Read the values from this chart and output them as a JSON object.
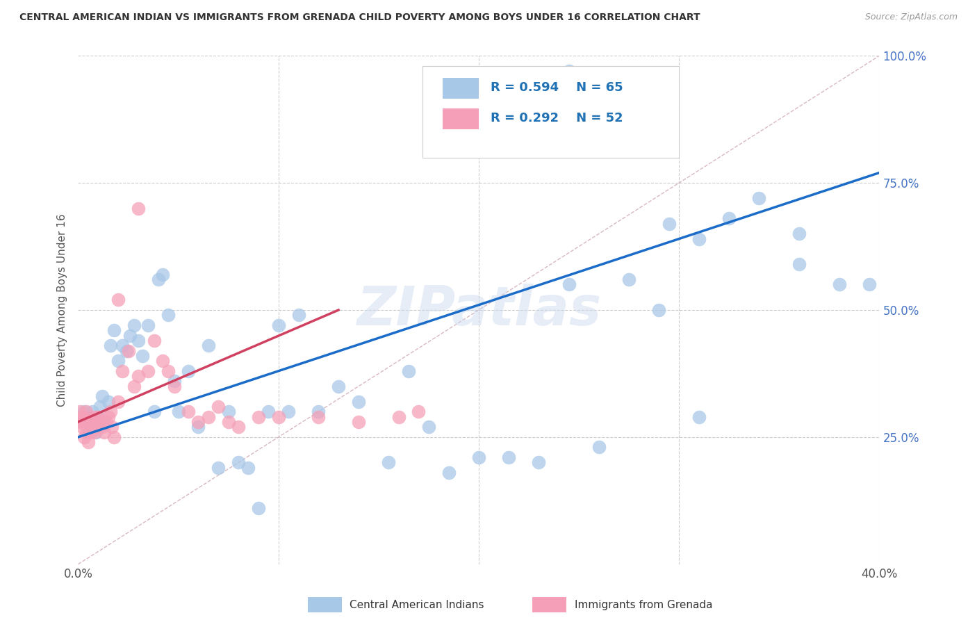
{
  "title": "CENTRAL AMERICAN INDIAN VS IMMIGRANTS FROM GRENADA CHILD POVERTY AMONG BOYS UNDER 16 CORRELATION CHART",
  "source": "Source: ZipAtlas.com",
  "ylabel": "Child Poverty Among Boys Under 16",
  "legend_label1": "Central American Indians",
  "legend_label2": "Immigrants from Grenada",
  "R1": 0.594,
  "N1": 65,
  "R2": 0.292,
  "N2": 52,
  "color1": "#a8c8e8",
  "color2": "#f5a0b8",
  "line_color1": "#1a6cc8",
  "line_color2": "#d04060",
  "ref_line_color": "#d8b8c0",
  "background_color": "#ffffff",
  "watermark": "ZIPatlas",
  "xlim": [
    0.0,
    0.4
  ],
  "ylim": [
    0.0,
    1.0
  ],
  "blue_line_x0": 0.0,
  "blue_line_y0": 0.25,
  "blue_line_x1": 0.4,
  "blue_line_y1": 0.77,
  "pink_line_x0": 0.0,
  "pink_line_y0": 0.28,
  "pink_line_x1": 0.13,
  "pink_line_y1": 0.5,
  "blue_x": [
    0.002,
    0.003,
    0.004,
    0.005,
    0.006,
    0.007,
    0.008,
    0.009,
    0.01,
    0.011,
    0.012,
    0.013,
    0.015,
    0.016,
    0.018,
    0.02,
    0.022,
    0.024,
    0.026,
    0.028,
    0.03,
    0.032,
    0.035,
    0.038,
    0.04,
    0.042,
    0.045,
    0.048,
    0.05,
    0.055,
    0.06,
    0.065,
    0.07,
    0.075,
    0.08,
    0.085,
    0.09,
    0.095,
    0.1,
    0.105,
    0.11,
    0.12,
    0.13,
    0.14,
    0.155,
    0.165,
    0.175,
    0.185,
    0.2,
    0.215,
    0.23,
    0.245,
    0.26,
    0.275,
    0.29,
    0.31,
    0.325,
    0.34,
    0.36,
    0.38,
    0.245,
    0.295,
    0.31,
    0.36,
    0.395
  ],
  "blue_y": [
    0.28,
    0.3,
    0.28,
    0.29,
    0.27,
    0.3,
    0.28,
    0.26,
    0.29,
    0.31,
    0.33,
    0.28,
    0.32,
    0.43,
    0.46,
    0.4,
    0.43,
    0.42,
    0.45,
    0.47,
    0.44,
    0.41,
    0.47,
    0.3,
    0.56,
    0.57,
    0.49,
    0.36,
    0.3,
    0.38,
    0.27,
    0.43,
    0.19,
    0.3,
    0.2,
    0.19,
    0.11,
    0.3,
    0.47,
    0.3,
    0.49,
    0.3,
    0.35,
    0.32,
    0.2,
    0.38,
    0.27,
    0.18,
    0.21,
    0.21,
    0.2,
    0.55,
    0.23,
    0.56,
    0.5,
    0.29,
    0.68,
    0.72,
    0.65,
    0.55,
    0.97,
    0.67,
    0.64,
    0.59,
    0.55
  ],
  "pink_x": [
    0.001,
    0.001,
    0.002,
    0.002,
    0.003,
    0.003,
    0.004,
    0.004,
    0.005,
    0.005,
    0.006,
    0.006,
    0.007,
    0.007,
    0.008,
    0.008,
    0.009,
    0.009,
    0.01,
    0.01,
    0.011,
    0.012,
    0.013,
    0.014,
    0.015,
    0.016,
    0.017,
    0.018,
    0.02,
    0.022,
    0.025,
    0.028,
    0.03,
    0.035,
    0.038,
    0.042,
    0.045,
    0.048,
    0.055,
    0.06,
    0.065,
    0.07,
    0.075,
    0.08,
    0.09,
    0.1,
    0.12,
    0.14,
    0.16,
    0.17,
    0.02,
    0.03
  ],
  "pink_y": [
    0.28,
    0.3,
    0.27,
    0.29,
    0.25,
    0.28,
    0.26,
    0.3,
    0.24,
    0.27,
    0.26,
    0.29,
    0.28,
    0.27,
    0.28,
    0.26,
    0.29,
    0.27,
    0.28,
    0.29,
    0.28,
    0.27,
    0.26,
    0.28,
    0.29,
    0.3,
    0.27,
    0.25,
    0.32,
    0.38,
    0.42,
    0.35,
    0.37,
    0.38,
    0.44,
    0.4,
    0.38,
    0.35,
    0.3,
    0.28,
    0.29,
    0.31,
    0.28,
    0.27,
    0.29,
    0.29,
    0.29,
    0.28,
    0.29,
    0.3,
    0.52,
    0.7
  ]
}
